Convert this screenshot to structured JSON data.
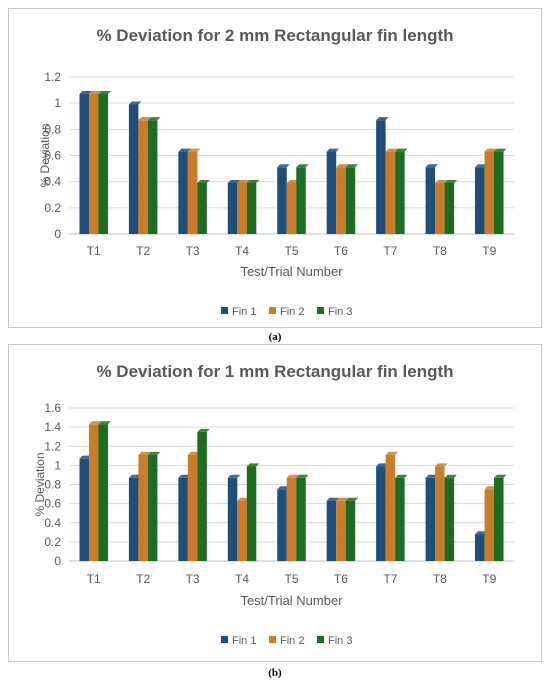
{
  "colors": {
    "fin1": "#1f4e79",
    "fin2": "#c97d2a",
    "fin3": "#1e6b22",
    "grid": "#d9d9d9",
    "text": "#595959"
  },
  "chart_data": [
    {
      "type": "bar",
      "title": "% Deviation for 2 mm Rectangular fin length",
      "xlabel": "Test/Trial Number",
      "ylabel": "% Deviation",
      "ylim": [
        0,
        1.2
      ],
      "yticks": [
        "0",
        "0.2",
        "0.4",
        "0.6",
        "0.8",
        "1",
        "1.2"
      ],
      "grid": true,
      "legend": "bottom",
      "categories": [
        "T1",
        "T2",
        "T3",
        "T4",
        "T5",
        "T6",
        "T7",
        "T8",
        "T9"
      ],
      "series": [
        {
          "name": "Fin 1",
          "values": [
            1.07,
            0.99,
            0.63,
            0.39,
            0.51,
            0.63,
            0.87,
            0.51,
            0.51
          ]
        },
        {
          "name": "Fin 2",
          "values": [
            1.07,
            0.87,
            0.63,
            0.39,
            0.39,
            0.51,
            0.63,
            0.39,
            0.63
          ]
        },
        {
          "name": "Fin 3",
          "values": [
            1.07,
            0.87,
            0.39,
            0.39,
            0.51,
            0.51,
            0.63,
            0.39,
            0.63
          ]
        }
      ],
      "caption": "(a)"
    },
    {
      "type": "bar",
      "title": "% Deviation for 1 mm Rectangular fin length",
      "xlabel": "Test/Trial Number",
      "ylabel": "% Deviation",
      "ylim": [
        0,
        1.6
      ],
      "yticks": [
        "0",
        "0.2",
        "0.4",
        "0.6",
        "0.8",
        "1",
        "1.2",
        "1.4",
        "1.6"
      ],
      "grid": true,
      "legend": "bottom",
      "categories": [
        "T1",
        "T2",
        "T3",
        "T4",
        "T5",
        "T6",
        "T7",
        "T8",
        "T9"
      ],
      "series": [
        {
          "name": "Fin 1",
          "values": [
            1.07,
            0.87,
            0.87,
            0.87,
            0.75,
            0.63,
            0.99,
            0.87,
            0.28
          ]
        },
        {
          "name": "Fin 2",
          "values": [
            1.43,
            1.11,
            1.11,
            0.63,
            0.87,
            0.63,
            1.11,
            0.99,
            0.75
          ]
        },
        {
          "name": "Fin 3",
          "values": [
            1.43,
            1.11,
            1.35,
            0.99,
            0.87,
            0.63,
            0.87,
            0.87,
            0.87
          ]
        }
      ],
      "caption": "(b)"
    }
  ]
}
